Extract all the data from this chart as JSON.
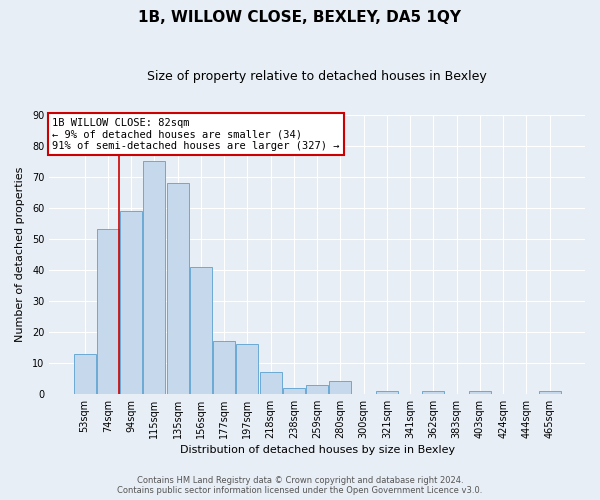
{
  "title": "1B, WILLOW CLOSE, BEXLEY, DA5 1QY",
  "subtitle": "Size of property relative to detached houses in Bexley",
  "xlabel": "Distribution of detached houses by size in Bexley",
  "ylabel": "Number of detached properties",
  "bar_labels": [
    "53sqm",
    "74sqm",
    "94sqm",
    "115sqm",
    "135sqm",
    "156sqm",
    "177sqm",
    "197sqm",
    "218sqm",
    "238sqm",
    "259sqm",
    "280sqm",
    "300sqm",
    "321sqm",
    "341sqm",
    "362sqm",
    "383sqm",
    "403sqm",
    "424sqm",
    "444sqm",
    "465sqm"
  ],
  "bar_values": [
    13,
    53,
    59,
    75,
    68,
    41,
    17,
    16,
    7,
    2,
    3,
    4,
    0,
    1,
    0,
    1,
    0,
    1,
    0,
    0,
    1
  ],
  "bar_color": "#c5d8ec",
  "bar_edge_color": "#6aaad4",
  "ylim": [
    0,
    90
  ],
  "yticks": [
    0,
    10,
    20,
    30,
    40,
    50,
    60,
    70,
    80,
    90
  ],
  "vline_x": 1.5,
  "vline_color": "#cc0000",
  "annotation_title": "1B WILLOW CLOSE: 82sqm",
  "annotation_line1": "← 9% of detached houses are smaller (34)",
  "annotation_line2": "91% of semi-detached houses are larger (327) →",
  "annotation_box_color": "#ffffff",
  "annotation_box_edge": "#cc0000",
  "footer1": "Contains HM Land Registry data © Crown copyright and database right 2024.",
  "footer2": "Contains public sector information licensed under the Open Government Licence v3.0.",
  "background_color": "#e8eef5",
  "grid_color": "#ffffff",
  "title_fontsize": 11,
  "subtitle_fontsize": 9,
  "axis_label_fontsize": 8,
  "tick_fontsize": 7,
  "annot_fontsize": 7.5,
  "footer_fontsize": 6
}
